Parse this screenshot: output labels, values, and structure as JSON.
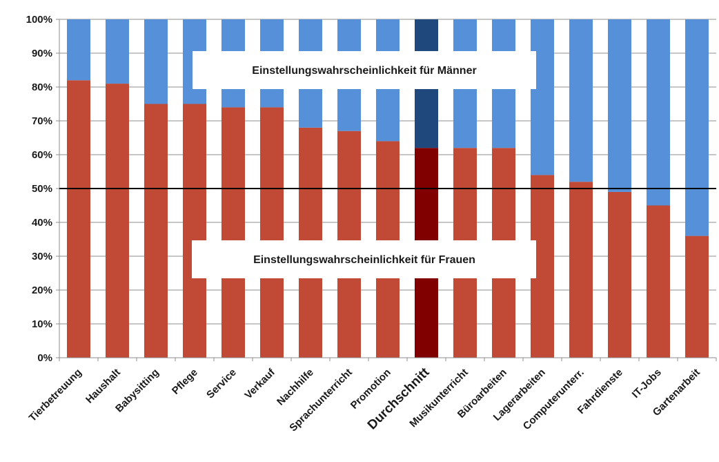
{
  "chart_data": {
    "type": "bar",
    "stacked": true,
    "percent_stacked": true,
    "categories": [
      "Tierbetreuung",
      "Haushalt",
      "Babysitting",
      "Pflege",
      "Service",
      "Verkauf",
      "Nachhilfe",
      "Sprachunterricht",
      "Promotion",
      "Durchschnitt",
      "Musikunterricht",
      "Büroarbeiten",
      "Lagerarbeiten",
      "Computerunterr.",
      "Fahrdienste",
      "IT-Jobs",
      "Gartenarbeit"
    ],
    "highlight_category": "Durchschnitt",
    "series": [
      {
        "name": "Einstellungswahrscheinlichkeit  für Frauen",
        "color": "#c04a35",
        "highlight_color": "#800000",
        "values": [
          82,
          81,
          75,
          75,
          74,
          74,
          68,
          67,
          64,
          62,
          62,
          62,
          54,
          52,
          49,
          45,
          36
        ]
      },
      {
        "name": "Einstellungswahrscheinlichkeit  für Männer",
        "color": "#5590d8",
        "highlight_color": "#1f497d",
        "values": [
          18,
          19,
          25,
          25,
          26,
          26,
          32,
          33,
          36,
          38,
          38,
          38,
          46,
          48,
          51,
          55,
          64
        ]
      }
    ],
    "y_ticks": [
      "0%",
      "10%",
      "20%",
      "30%",
      "40%",
      "50%",
      "60%",
      "70%",
      "80%",
      "90%",
      "100%"
    ],
    "ylim": [
      0,
      100
    ],
    "reference_line": 50,
    "grid": true
  }
}
